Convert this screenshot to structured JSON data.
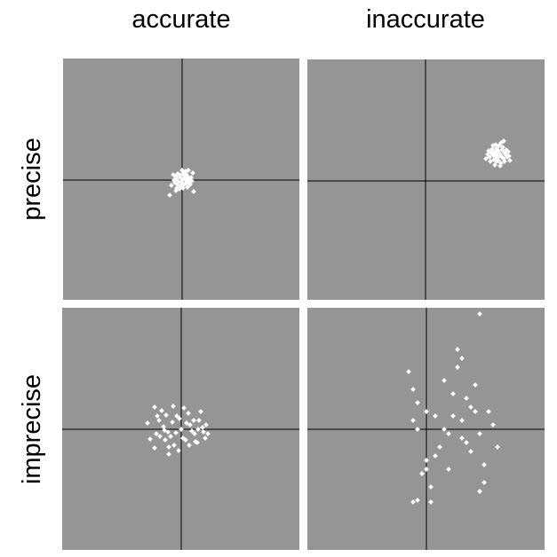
{
  "columns": [
    "accurate",
    "inaccurate"
  ],
  "rows": [
    "precise",
    "imprecise"
  ],
  "colors": {
    "panel": "#959595",
    "points": "#ffffff",
    "axes": "#000000"
  },
  "panels": [
    {
      "row": "precise",
      "column": "accurate",
      "points": [
        [
          0,
          0
        ],
        [
          3,
          2
        ],
        [
          -2,
          3
        ],
        [
          5,
          -1
        ],
        [
          -4,
          -2
        ],
        [
          2,
          -5
        ],
        [
          -3,
          6
        ],
        [
          6,
          4
        ],
        [
          -6,
          1
        ],
        [
          1,
          7
        ],
        [
          -1,
          -6
        ],
        [
          4,
          -4
        ],
        [
          -5,
          -5
        ],
        [
          7,
          -2
        ],
        [
          -7,
          4
        ],
        [
          3,
          8
        ],
        [
          -2,
          -8
        ],
        [
          8,
          1
        ],
        [
          0,
          -3
        ],
        [
          2,
          5
        ],
        [
          -8,
          -3
        ],
        [
          5,
          6
        ],
        [
          -5,
          7
        ],
        [
          9,
          -5
        ],
        [
          -9,
          0
        ],
        [
          1,
          -9
        ],
        [
          4,
          10
        ],
        [
          -3,
          -10
        ],
        [
          10,
          3
        ],
        [
          6,
          -8
        ],
        [
          -6,
          -9
        ],
        [
          -10,
          6
        ],
        [
          11,
          -1
        ],
        [
          0,
          11
        ],
        [
          -12,
          -6
        ],
        [
          12,
          8
        ],
        [
          7,
          11
        ],
        [
          -7,
          -12
        ],
        [
          13,
          -13
        ],
        [
          -14,
          -17
        ]
      ]
    },
    {
      "row": "precise",
      "column": "inaccurate",
      "points": [
        [
          80,
          27
        ],
        [
          84,
          30
        ],
        [
          78,
          33
        ],
        [
          88,
          25
        ],
        [
          76,
          29
        ],
        [
          82,
          23
        ],
        [
          86,
          35
        ],
        [
          74,
          32
        ],
        [
          90,
          30
        ],
        [
          80,
          37
        ],
        [
          85,
          20
        ],
        [
          77,
          24
        ],
        [
          92,
          27
        ],
        [
          72,
          27
        ],
        [
          83,
          40
        ],
        [
          88,
          33
        ],
        [
          79,
          28
        ],
        [
          81,
          31
        ],
        [
          86,
          27
        ],
        [
          75,
          36
        ],
        [
          91,
          35
        ],
        [
          70,
          30
        ],
        [
          84,
          17
        ],
        [
          79,
          41
        ],
        [
          94,
          28
        ],
        [
          73,
          22
        ],
        [
          87,
          38
        ],
        [
          78,
          18
        ],
        [
          82,
          34
        ],
        [
          89,
          22
        ],
        [
          76,
          40
        ],
        [
          85,
          43
        ],
        [
          93,
          33
        ],
        [
          71,
          34
        ],
        [
          80,
          22
        ],
        [
          95,
          23
        ],
        [
          88,
          45
        ],
        [
          68,
          25
        ],
        [
          83,
          28
        ],
        [
          77,
          31
        ]
      ]
    },
    {
      "row": "imprecise",
      "column": "accurate",
      "points": [
        [
          0,
          0
        ],
        [
          10,
          5
        ],
        [
          -10,
          8
        ],
        [
          15,
          -5
        ],
        [
          -15,
          -3
        ],
        [
          5,
          -12
        ],
        [
          -5,
          15
        ],
        [
          20,
          10
        ],
        [
          -20,
          3
        ],
        [
          25,
          -3
        ],
        [
          -25,
          10
        ],
        [
          8,
          18
        ],
        [
          -8,
          -18
        ],
        [
          18,
          -15
        ],
        [
          -18,
          -12
        ],
        [
          28,
          5
        ],
        [
          -28,
          -5
        ],
        [
          3,
          24
        ],
        [
          -3,
          -24
        ],
        [
          22,
          20
        ],
        [
          -22,
          21
        ],
        [
          12,
          -2
        ],
        [
          -12,
          -8
        ],
        [
          27,
          -10
        ],
        [
          -27,
          15
        ],
        [
          6,
          7
        ],
        [
          -6,
          -4
        ],
        [
          30,
          -5
        ],
        [
          -30,
          25
        ],
        [
          14,
          10
        ],
        [
          -14,
          -20
        ],
        [
          19,
          0
        ],
        [
          -19,
          -1
        ],
        [
          2,
          -10
        ],
        [
          -2,
          12
        ],
        [
          24,
          2
        ],
        [
          -24,
          -8
        ],
        [
          9,
          -18
        ],
        [
          -9,
          26
        ],
        [
          -14,
          -28
        ],
        [
          -38,
          7
        ],
        [
          -30,
          -21
        ],
        [
          -35,
          -11
        ],
        [
          -17,
          16
        ],
        [
          16,
          -14
        ]
      ]
    },
    {
      "row": "imprecise",
      "column": "inaccurate",
      "points": [
        [
          20,
          0
        ],
        [
          40,
          10
        ],
        [
          0,
          20
        ],
        [
          60,
          -5
        ],
        [
          -10,
          30
        ],
        [
          30,
          40
        ],
        [
          50,
          25
        ],
        [
          -15,
          10
        ],
        [
          10,
          -30
        ],
        [
          70,
          20
        ],
        [
          45,
          -15
        ],
        [
          25,
          -45
        ],
        [
          55,
          50
        ],
        [
          -5,
          -50
        ],
        [
          35,
          70
        ],
        [
          15,
          -20
        ],
        [
          65,
          -40
        ],
        [
          -20,
          65
        ],
        [
          80,
          -20
        ],
        [
          40,
          80
        ],
        [
          5,
          -65
        ],
        [
          60,
          -70
        ],
        [
          -10,
          -80
        ],
        [
          30,
          15
        ],
        [
          50,
          -25
        ],
        [
          20,
          55
        ],
        [
          0,
          -35
        ],
        [
          75,
          5
        ],
        [
          -15,
          45
        ],
        [
          45,
          35
        ],
        [
          10,
          15
        ],
        [
          25,
          -5
        ],
        [
          65,
          -60
        ],
        [
          60,
          -70
        ],
        [
          -15,
          -82
        ],
        [
          5,
          -82
        ],
        [
          40,
          -10
        ],
        [
          55,
          20
        ],
        [
          35,
          90
        ],
        [
          60,
          130
        ],
        [
          -10,
          0
        ],
        [
          0,
          -45
        ]
      ]
    }
  ]
}
